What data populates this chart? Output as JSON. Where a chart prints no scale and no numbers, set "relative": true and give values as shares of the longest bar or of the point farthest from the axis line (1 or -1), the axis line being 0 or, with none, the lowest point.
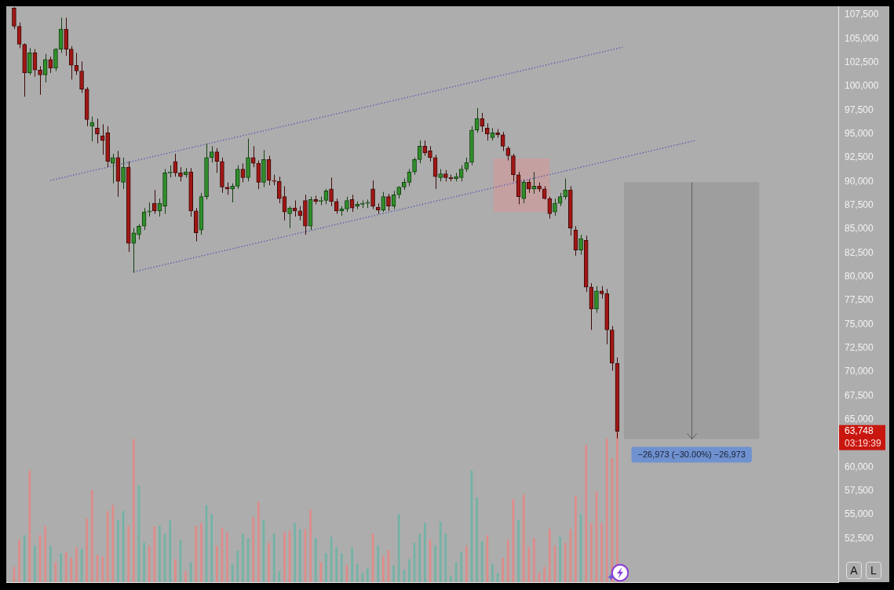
{
  "chart_data": [
    {
      "type": "candlestick",
      "categories": [
        null,
        null,
        null,
        null,
        null,
        null,
        null,
        null,
        null,
        null,
        null,
        null,
        null,
        null,
        null,
        null,
        null,
        null,
        null,
        null,
        null,
        null,
        null,
        null,
        null,
        null,
        null,
        null,
        null,
        null,
        null,
        null,
        null,
        null,
        null,
        null,
        null,
        null,
        null,
        null,
        null,
        null,
        null,
        null,
        null,
        null,
        null,
        null,
        null,
        null,
        null,
        null,
        null,
        null,
        null,
        null,
        null,
        null,
        null,
        null,
        null,
        null,
        null,
        null,
        null,
        null,
        null,
        null,
        null,
        null,
        null,
        null,
        null,
        null,
        null,
        null,
        null,
        null,
        null,
        null,
        null,
        null,
        null,
        null,
        null,
        null,
        null,
        null,
        null,
        null,
        null,
        null,
        null,
        null,
        null,
        null,
        null,
        null,
        null,
        null,
        null,
        null,
        null,
        null,
        null,
        null,
        null,
        null,
        null,
        null,
        null,
        null,
        null,
        null,
        null,
        null,
        null,
        null,
        null,
        null,
        null,
        null,
        null,
        null,
        null,
        null,
        null,
        null,
        null,
        null,
        null,
        null,
        null,
        null,
        null,
        null,
        null,
        null,
        null,
        null,
        null,
        null,
        null,
        null,
        null,
        null,
        null,
        null,
        null,
        null,
        null,
        null,
        null,
        null,
        null,
        null,
        null,
        null,
        null,
        null
      ],
      "ohlc": [
        null,
        [
          108200,
          108300,
          106000,
          106300
        ],
        [
          106300,
          106700,
          104000,
          104400
        ],
        [
          104400,
          104500,
          98900,
          101400
        ],
        [
          101400,
          104000,
          101200,
          103500
        ],
        [
          103500,
          103900,
          101000,
          101700
        ],
        [
          101700,
          102100,
          99100,
          101200
        ],
        [
          101200,
          103400,
          100400,
          102800
        ],
        [
          102800,
          103100,
          101400,
          101900
        ],
        [
          101900,
          104000,
          101600,
          103900
        ],
        [
          103900,
          107200,
          103500,
          106000
        ],
        [
          106000,
          107200,
          103200,
          103900
        ],
        [
          103900,
          104200,
          100700,
          102200
        ],
        [
          102200,
          103500,
          101200,
          101600
        ],
        [
          101600,
          102600,
          99300,
          99700
        ],
        [
          99700,
          99900,
          95800,
          96500
        ],
        [
          95800,
          96800,
          94200,
          96200
        ],
        [
          95600,
          96600,
          94000,
          95000
        ],
        [
          94800,
          96000,
          92800,
          94300
        ],
        [
          95100,
          95800,
          91500,
          92100
        ],
        [
          91900,
          92900,
          89800,
          92500
        ],
        [
          92500,
          93200,
          88400,
          90000
        ],
        [
          89900,
          92500,
          89200,
          91500
        ],
        [
          91500,
          92100,
          82600,
          83500
        ],
        [
          83500,
          85100,
          80400,
          84600
        ],
        [
          84400,
          85500,
          83900,
          85300
        ],
        [
          85300,
          87200,
          84900,
          86800
        ],
        [
          86800,
          87800,
          86300,
          86900
        ],
        [
          87700,
          89100,
          86600,
          86900
        ],
        [
          86900,
          88200,
          86300,
          87700
        ],
        [
          87400,
          91300,
          86600,
          90900
        ],
        [
          90900,
          91700,
          90400,
          91000
        ],
        [
          92100,
          92900,
          90500,
          90900
        ],
        [
          90900,
          91500,
          90000,
          90500
        ],
        [
          90700,
          91400,
          90400,
          91000
        ],
        [
          91000,
          91400,
          86300,
          86900
        ],
        [
          86900,
          87200,
          83700,
          84600
        ],
        [
          84900,
          88800,
          84400,
          88400
        ],
        [
          88400,
          94000,
          88100,
          92500
        ],
        [
          92500,
          93700,
          92000,
          93100
        ],
        [
          93100,
          93500,
          90900,
          92100
        ],
        [
          92100,
          92500,
          88800,
          89400
        ],
        [
          89400,
          89900,
          88600,
          89200
        ],
        [
          89200,
          89800,
          87800,
          89500
        ],
        [
          89500,
          91700,
          89200,
          91300
        ],
        [
          91300,
          91900,
          89900,
          90400
        ],
        [
          90400,
          94500,
          90000,
          92500
        ],
        [
          92500,
          93700,
          91500,
          91900
        ],
        [
          91900,
          92200,
          89200,
          89900
        ],
        [
          89900,
          93300,
          89400,
          92300
        ],
        [
          92300,
          92700,
          89600,
          90100
        ],
        [
          90100,
          90700,
          89600,
          90000
        ],
        [
          90000,
          90500,
          87700,
          88200
        ],
        [
          88400,
          89500,
          85900,
          86800
        ],
        [
          86600,
          87400,
          85100,
          87200
        ],
        [
          87200,
          88000,
          86300,
          86900
        ],
        [
          86900,
          87400,
          85900,
          86400
        ],
        [
          88000,
          88600,
          84400,
          85300
        ],
        [
          85300,
          88400,
          84900,
          88100
        ],
        [
          88100,
          88500,
          87600,
          87900
        ],
        [
          87900,
          88400,
          87500,
          88000
        ],
        [
          88000,
          89200,
          87600,
          89000
        ],
        [
          89200,
          90400,
          87400,
          87900
        ],
        [
          87900,
          88200,
          86600,
          86900
        ],
        [
          86900,
          87400,
          86400,
          87100
        ],
        [
          87100,
          88400,
          86800,
          88000
        ],
        [
          88100,
          88600,
          86800,
          87200
        ],
        [
          87400,
          87900,
          87100,
          87600
        ],
        [
          87600,
          88000,
          87200,
          87700
        ],
        [
          87700,
          88100,
          87200,
          87800
        ],
        [
          89200,
          90100,
          87100,
          87400
        ],
        [
          87300,
          87700,
          86600,
          87000
        ],
        [
          87000,
          88900,
          86800,
          88400
        ],
        [
          88400,
          88700,
          86900,
          87400
        ],
        [
          87400,
          89000,
          87100,
          88600
        ],
        [
          88600,
          89500,
          88200,
          89400
        ],
        [
          89400,
          90300,
          89100,
          89900
        ],
        [
          89900,
          91300,
          89500,
          91000
        ],
        [
          91000,
          92500,
          90700,
          92300
        ],
        [
          92300,
          94300,
          91900,
          93700
        ],
        [
          93700,
          94300,
          92700,
          93000
        ],
        [
          93200,
          93700,
          92100,
          92500
        ],
        [
          92500,
          92800,
          89200,
          90500
        ],
        [
          90400,
          91300,
          90000,
          90800
        ],
        [
          90800,
          91200,
          90000,
          90400
        ],
        [
          90400,
          90700,
          90000,
          90300
        ],
        [
          90300,
          90900,
          90000,
          90500
        ],
        [
          90400,
          91700,
          90000,
          91300
        ],
        [
          91300,
          92500,
          91000,
          92000
        ],
        [
          92000,
          95800,
          91700,
          95400
        ],
        [
          95400,
          97700,
          95100,
          96600
        ],
        [
          96600,
          97200,
          95200,
          95800
        ],
        [
          95600,
          96100,
          94300,
          95000
        ],
        [
          94600,
          95600,
          94300,
          95100
        ],
        [
          95100,
          95500,
          94600,
          94900
        ],
        [
          94900,
          95200,
          93200,
          93700
        ],
        [
          93500,
          93700,
          92200,
          92700
        ],
        [
          92700,
          92900,
          90000,
          90700
        ],
        [
          90700,
          91000,
          87600,
          88400
        ],
        [
          88200,
          90200,
          87700,
          89900
        ],
        [
          89900,
          90200,
          88800,
          89200
        ],
        [
          89200,
          91000,
          88700,
          89500
        ],
        [
          89500,
          89900,
          88900,
          89200
        ],
        [
          89200,
          89500,
          88100,
          88200
        ],
        [
          88200,
          88400,
          86100,
          86600
        ],
        [
          86800,
          88200,
          86400,
          87700
        ],
        [
          87700,
          88800,
          87400,
          88400
        ],
        [
          88400,
          90300,
          88100,
          89100
        ],
        [
          89100,
          89500,
          84300,
          85100
        ],
        [
          84900,
          85300,
          82200,
          82800
        ],
        [
          82800,
          84400,
          82300,
          84000
        ],
        [
          83800,
          84300,
          78400,
          78900
        ],
        [
          78900,
          79300,
          74400,
          76600
        ],
        [
          76600,
          79000,
          76200,
          78500
        ],
        [
          78500,
          79000,
          77700,
          78200
        ],
        [
          78200,
          78700,
          72900,
          74400
        ],
        [
          74400,
          74800,
          70100,
          70900
        ],
        [
          70900,
          71500,
          63000,
          63748
        ],
        null,
        null,
        null,
        null,
        null,
        null,
        null,
        null,
        null,
        null,
        null,
        null,
        null,
        null,
        null,
        null,
        null,
        null,
        null,
        null,
        null,
        null,
        null,
        null,
        null,
        null,
        null,
        null,
        null,
        null,
        null,
        null,
        null,
        null,
        null,
        null,
        null,
        null,
        null,
        null,
        null,
        null
      ],
      "series": [
        {
          "type": "line",
          "color": "#4d52b3",
          "line_style": "dotted",
          "marker": "none",
          "values": [
            null,
            null,
            null,
            null,
            null,
            null,
            null,
            null,
            90100,
            null,
            null,
            null,
            null,
            null,
            null,
            null,
            null,
            null,
            null,
            null,
            null,
            null,
            null,
            null,
            null,
            null,
            null,
            null,
            null,
            null,
            null,
            null,
            null,
            null,
            null,
            null,
            null,
            null,
            null,
            null,
            null,
            null,
            null,
            null,
            null,
            null,
            null,
            null,
            null,
            null,
            null,
            null,
            null,
            null,
            null,
            null,
            null,
            null,
            null,
            null,
            null,
            null,
            null,
            null,
            null,
            null,
            null,
            null,
            null,
            null,
            null,
            null,
            null,
            null,
            null,
            null,
            null,
            null,
            null,
            null,
            null,
            null,
            null,
            null,
            null,
            null,
            null,
            null,
            null,
            null,
            null,
            null,
            null,
            null,
            null,
            null,
            null,
            null,
            null,
            null,
            null,
            null,
            null,
            null,
            null,
            null,
            null,
            null,
            null,
            null,
            null,
            null,
            null,
            null,
            null,
            null,
            null,
            null,
            104100,
            null,
            null,
            null,
            null,
            null,
            null,
            null,
            null,
            null,
            null,
            null,
            null,
            null,
            null,
            null,
            null,
            null,
            null,
            null,
            null,
            null,
            null,
            null,
            null,
            null,
            null,
            null,
            null,
            null,
            null,
            null,
            null,
            null,
            null,
            null,
            null,
            null,
            null,
            null,
            null,
            null
          ]
        },
        {
          "type": "line",
          "color": "#4d52b3",
          "line_style": "dotted",
          "marker": "none",
          "values": [
            null,
            null,
            null,
            null,
            null,
            null,
            null,
            null,
            null,
            null,
            null,
            null,
            null,
            null,
            null,
            null,
            null,
            null,
            null,
            null,
            null,
            null,
            null,
            null,
            80500,
            null,
            null,
            null,
            null,
            null,
            null,
            null,
            null,
            null,
            null,
            null,
            null,
            null,
            null,
            null,
            null,
            null,
            null,
            null,
            null,
            null,
            null,
            null,
            null,
            null,
            null,
            null,
            null,
            null,
            null,
            null,
            null,
            null,
            null,
            null,
            null,
            null,
            null,
            null,
            null,
            null,
            null,
            null,
            null,
            null,
            null,
            null,
            null,
            null,
            null,
            null,
            null,
            null,
            null,
            null,
            null,
            null,
            null,
            null,
            null,
            null,
            null,
            null,
            null,
            null,
            null,
            null,
            null,
            null,
            null,
            null,
            null,
            null,
            null,
            null,
            null,
            null,
            null,
            null,
            null,
            null,
            null,
            null,
            null,
            null,
            null,
            null,
            null,
            null,
            null,
            null,
            null,
            null,
            null,
            null,
            null,
            null,
            null,
            null,
            null,
            null,
            null,
            null,
            null,
            null,
            null,
            null,
            94300,
            null,
            null,
            null,
            null,
            null,
            null,
            null,
            null,
            null,
            null,
            null,
            null,
            null,
            null,
            null,
            null,
            null,
            null,
            null,
            null,
            null,
            null,
            null,
            null,
            null,
            null,
            null
          ]
        }
      ],
      "ylim": [
        47900,
        108400
      ],
      "yticks": [
        {
          "value": 52500,
          "label": "52,500"
        },
        {
          "value": 55000,
          "label": "55,000"
        },
        {
          "value": 57500,
          "label": "57,500"
        },
        {
          "value": 60000,
          "label": "60,000"
        },
        {
          "value": 65000,
          "label": "65,000"
        },
        {
          "value": 67500,
          "label": "67,500"
        },
        {
          "value": 70000,
          "label": "70,000"
        },
        {
          "value": 72500,
          "label": "72,500"
        },
        {
          "value": 75000,
          "label": "75,000"
        },
        {
          "value": 77500,
          "label": "77,500"
        },
        {
          "value": 80000,
          "label": "80,000"
        },
        {
          "value": 82500,
          "label": "82,500"
        },
        {
          "value": 85000,
          "label": "85,000"
        },
        {
          "value": 87500,
          "label": "87,500"
        },
        {
          "value": 90000,
          "label": "90,000"
        },
        {
          "value": 92500,
          "label": "92,500"
        },
        {
          "value": 95000,
          "label": "95,000"
        },
        {
          "value": 97500,
          "label": "97,500"
        },
        {
          "value": 100000,
          "label": "100,000"
        },
        {
          "value": 102500,
          "label": "102,500"
        },
        {
          "value": 105000,
          "label": "105,000"
        },
        {
          "value": 107500,
          "label": "107,500"
        }
      ],
      "bands": [
        {
          "axis": "y",
          "from": 86800,
          "to": 92400,
          "color": "#c5a0a1"
        },
        {
          "axis": "y",
          "from": 89910,
          "to": 62937,
          "color": "#9e9e9e",
          "label": "−26,973 (−30.00%) −26,973"
        }
      ],
      "annotations": [
        "63,748",
        "03:19:39",
        "A",
        "L"
      ],
      "tick_labels": "y"
    },
    {
      "type": "bar",
      "relative": true,
      "categories": [
        null,
        null,
        null,
        null,
        null,
        null,
        null,
        null,
        null,
        null,
        null,
        null,
        null,
        null,
        null,
        null,
        null,
        null,
        null,
        null,
        null,
        null,
        null,
        null,
        null,
        null,
        null,
        null,
        null,
        null,
        null,
        null,
        null,
        null,
        null,
        null,
        null,
        null,
        null,
        null,
        null,
        null,
        null,
        null,
        null,
        null,
        null,
        null,
        null,
        null,
        null,
        null,
        null,
        null,
        null,
        null,
        null,
        null,
        null,
        null,
        null,
        null,
        null,
        null,
        null,
        null,
        null,
        null,
        null,
        null,
        null,
        null,
        null,
        null,
        null,
        null,
        null,
        null,
        null,
        null,
        null,
        null,
        null,
        null,
        null,
        null,
        null,
        null,
        null,
        null,
        null,
        null,
        null,
        null,
        null,
        null,
        null,
        null,
        null,
        null,
        null,
        null,
        null,
        null,
        null,
        null,
        null,
        null,
        null,
        null,
        null,
        null,
        null,
        null,
        null,
        null,
        null,
        null,
        null,
        null,
        null,
        null,
        null,
        null,
        null,
        null,
        null,
        null,
        null,
        null,
        null,
        null,
        null,
        null,
        null,
        null,
        null,
        null,
        null,
        null,
        null,
        null,
        null,
        null,
        null,
        null,
        null,
        null,
        null,
        null,
        null,
        null,
        null,
        null,
        null,
        null,
        null,
        null,
        null,
        null
      ],
      "values": [
        null,
        0.1,
        0.28,
        0.31,
        0.74,
        0.24,
        0.31,
        0.37,
        0.24,
        0.13,
        0.19,
        0.2,
        0.16,
        0.23,
        0.22,
        0.42,
        0.61,
        0.18,
        0.17,
        0.47,
        0.51,
        0.41,
        0.47,
        0.37,
        0.95,
        0.64,
        0.26,
        0.24,
        0.37,
        0.37,
        0.32,
        0.41,
        0.15,
        0.28,
        0.07,
        0.13,
        0.37,
        0.39,
        0.51,
        0.45,
        0.24,
        0.36,
        0.33,
        0.12,
        0.21,
        0.32,
        0.29,
        0.43,
        0.53,
        0.41,
        0.26,
        0.32,
        0.07,
        0.33,
        0.34,
        0.39,
        0.35,
        0.35,
        0.48,
        0.29,
        0.13,
        0.19,
        0.3,
        0.23,
        0.19,
        0.11,
        0.23,
        0.12,
        0.06,
        0.09,
        0.32,
        0.24,
        0.17,
        0.21,
        0.11,
        0.45,
        0.08,
        0.15,
        0.26,
        0.32,
        0.39,
        0.28,
        0.24,
        0.4,
        0.32,
        0.04,
        0.13,
        0.2,
        0.24,
        0.74,
        0.56,
        0.27,
        0.31,
        0.12,
        0.06,
        0.16,
        0.28,
        0.55,
        0.41,
        0.58,
        0.23,
        0.29,
        0.06,
        0.1,
        0.35,
        0.24,
        0.3,
        0.26,
        0.35,
        0.57,
        0.45,
        0.91,
        0.39,
        0.6,
        0.39,
        0.95,
        0.82,
        1,
        null,
        null,
        null,
        null,
        null,
        null,
        null,
        null,
        null,
        null,
        null,
        null,
        null,
        null,
        null,
        null,
        null,
        null,
        null,
        null,
        null,
        null,
        null,
        null,
        null,
        null,
        null,
        null,
        null,
        null,
        null,
        null,
        null,
        null,
        null,
        null,
        null,
        null,
        null,
        null,
        null,
        null
      ],
      "colors": [
        null,
        "#e08b88",
        "#e08b88",
        "#72b3a6",
        "#e08b88",
        "#72b3a6",
        "#e08b88",
        "#e08b88",
        "#72b3a6",
        "#e08b88",
        "#72b3a6",
        "#e08b88",
        "#e08b88",
        "#e08b88",
        "#72b3a6",
        "#e08b88",
        "#e08b88",
        "#e08b88",
        "#e08b88",
        "#e08b88",
        "#e08b88",
        "#72b3a6",
        "#72b3a6",
        "#e08b88",
        "#e08b88",
        "#72b3a6",
        "#72b3a6",
        "#e08b88",
        "#e08b88",
        "#72b3a6",
        "#72b3a6",
        "#72b3a6",
        "#e08b88",
        "#72b3a6",
        "#e08b88",
        "#72b3a6",
        "#e08b88",
        "#e08b88",
        "#72b3a6",
        "#72b3a6",
        "#e08b88",
        "#e08b88",
        "#e08b88",
        "#72b3a6",
        "#72b3a6",
        "#72b3a6",
        "#72b3a6",
        "#e08b88",
        "#e08b88",
        "#72b3a6",
        "#e08b88",
        "#72b3a6",
        "#72b3a6",
        "#e08b88",
        "#e08b88",
        "#72b3a6",
        "#72b3a6",
        "#e08b88",
        "#e08b88",
        "#72b3a6",
        "#e08b88",
        "#72b3a6",
        "#72b3a6",
        "#72b3a6",
        "#72b3a6",
        "#e08b88",
        "#72b3a6",
        "#72b3a6",
        "#72b3a6",
        "#72b3a6",
        "#e08b88",
        "#72b3a6",
        "#e08b88",
        "#e08b88",
        "#72b3a6",
        "#72b3a6",
        "#72b3a6",
        "#72b3a6",
        "#72b3a6",
        "#72b3a6",
        "#72b3a6",
        "#e08b88",
        "#72b3a6",
        "#72b3a6",
        "#72b3a6",
        "#72b3a6",
        "#72b3a6",
        "#72b3a6",
        "#e08b88",
        "#72b3a6",
        "#72b3a6",
        "#72b3a6",
        "#e08b88",
        "#72b3a6",
        "#72b3a6",
        "#e08b88",
        "#e08b88",
        "#e08b88",
        "#72b3a6",
        "#e08b88",
        "#e08b88",
        "#e08b88",
        "#e08b88",
        "#e08b88",
        "#e08b88",
        "#e08b88",
        "#72b3a6",
        "#e08b88",
        "#e08b88",
        "#e08b88",
        "#72b3a6",
        "#e08b88",
        "#e08b88",
        "#e08b88",
        "#e08b88",
        "#e08b88",
        "#e08b88",
        "#e08b88",
        null,
        null,
        null,
        null,
        null,
        null,
        null,
        null,
        null,
        null,
        null,
        null,
        null,
        null,
        null,
        null,
        null,
        null,
        null,
        null,
        null,
        null,
        null,
        null,
        null,
        null,
        null,
        null,
        null,
        null,
        null,
        null,
        null,
        null,
        null,
        null,
        null,
        null,
        null,
        null,
        null,
        null
      ]
    }
  ]
}
